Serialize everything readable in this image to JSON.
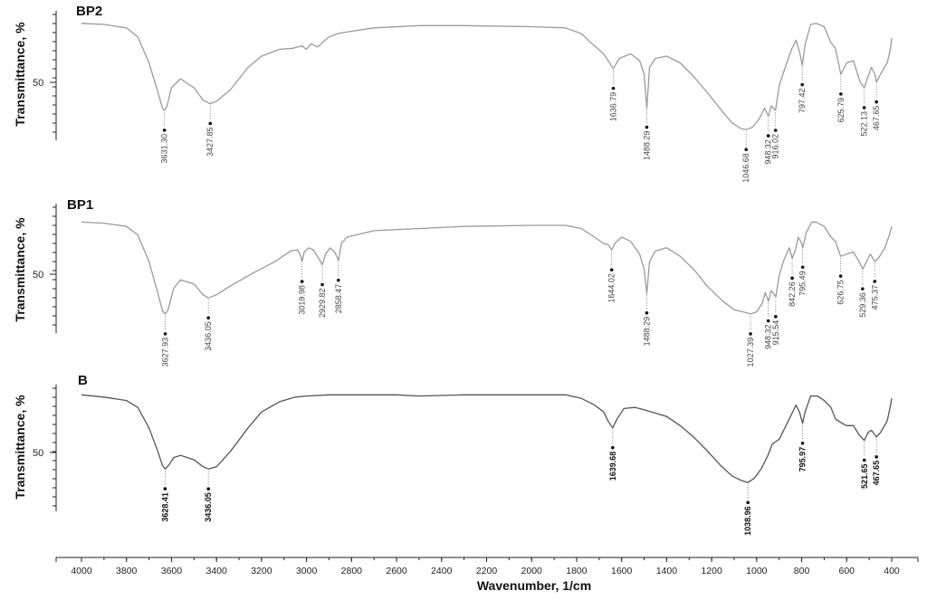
{
  "chart_data": {
    "type": "line",
    "xlabel": "Wavenumber, 1/cm",
    "xlim": [
      4000,
      400
    ],
    "xticks": [
      "4000",
      "3800",
      "3600",
      "3400",
      "3200",
      "3000",
      "2800",
      "2600",
      "2400",
      "2200",
      "2000",
      "1800",
      "1600",
      "1400",
      "1200",
      "1000",
      "800",
      "600",
      "400"
    ],
    "panels": [
      {
        "name": "BP2",
        "ylabel": "Transmittance, %",
        "ytick_label": "50",
        "color": "#9a9a9a",
        "line": [
          [
            4000,
            0.97
          ],
          [
            3900,
            0.96
          ],
          [
            3800,
            0.93
          ],
          [
            3750,
            0.85
          ],
          [
            3700,
            0.62
          ],
          [
            3660,
            0.36
          ],
          [
            3640,
            0.22
          ],
          [
            3631,
            0.2
          ],
          [
            3620,
            0.24
          ],
          [
            3600,
            0.4
          ],
          [
            3560,
            0.48
          ],
          [
            3500,
            0.4
          ],
          [
            3460,
            0.29
          ],
          [
            3428,
            0.26
          ],
          [
            3400,
            0.28
          ],
          [
            3340,
            0.38
          ],
          [
            3260,
            0.58
          ],
          [
            3200,
            0.68
          ],
          [
            3120,
            0.74
          ],
          [
            3060,
            0.75
          ],
          [
            3020,
            0.77
          ],
          [
            3000,
            0.74
          ],
          [
            2980,
            0.79
          ],
          [
            2950,
            0.76
          ],
          [
            2930,
            0.8
          ],
          [
            2900,
            0.85
          ],
          [
            2860,
            0.88
          ],
          [
            2800,
            0.9
          ],
          [
            2700,
            0.93
          ],
          [
            2500,
            0.95
          ],
          [
            2300,
            0.95
          ],
          [
            2000,
            0.94
          ],
          [
            1850,
            0.93
          ],
          [
            1780,
            0.88
          ],
          [
            1720,
            0.77
          ],
          [
            1680,
            0.7
          ],
          [
            1637,
            0.57
          ],
          [
            1610,
            0.66
          ],
          [
            1560,
            0.7
          ],
          [
            1520,
            0.64
          ],
          [
            1500,
            0.52
          ],
          [
            1488,
            0.22
          ],
          [
            1476,
            0.58
          ],
          [
            1450,
            0.66
          ],
          [
            1400,
            0.68
          ],
          [
            1340,
            0.62
          ],
          [
            1280,
            0.5
          ],
          [
            1220,
            0.36
          ],
          [
            1160,
            0.21
          ],
          [
            1110,
            0.09
          ],
          [
            1070,
            0.04
          ],
          [
            1047,
            0.03
          ],
          [
            1020,
            0.05
          ],
          [
            990,
            0.12
          ],
          [
            965,
            0.22
          ],
          [
            948,
            0.15
          ],
          [
            935,
            0.24
          ],
          [
            916,
            0.2
          ],
          [
            900,
            0.42
          ],
          [
            870,
            0.6
          ],
          [
            845,
            0.74
          ],
          [
            825,
            0.82
          ],
          [
            810,
            0.72
          ],
          [
            797,
            0.6
          ],
          [
            785,
            0.78
          ],
          [
            760,
            0.96
          ],
          [
            735,
            0.97
          ],
          [
            700,
            0.94
          ],
          [
            670,
            0.8
          ],
          [
            650,
            0.75
          ],
          [
            626,
            0.52
          ],
          [
            600,
            0.62
          ],
          [
            570,
            0.64
          ],
          [
            540,
            0.45
          ],
          [
            522,
            0.4
          ],
          [
            505,
            0.5
          ],
          [
            490,
            0.58
          ],
          [
            475,
            0.52
          ],
          [
            468,
            0.45
          ],
          [
            450,
            0.52
          ],
          [
            420,
            0.62
          ],
          [
            405,
            0.75
          ],
          [
            400,
            0.84
          ]
        ],
        "peaks": [
          3631.3,
          3427.85,
          1636.79,
          1488.29,
          1046.68,
          948.32,
          916.02,
          797.42,
          625.79,
          522.13,
          467.65
        ],
        "peak_labels": [
          "3631.30",
          "3427.85",
          "1636.79",
          "1488.29",
          "1046.68",
          "948.32",
          "916.02",
          "797.42",
          "625.79",
          "522.13",
          "467.65"
        ]
      },
      {
        "name": "BP1",
        "ylabel": "Transmittance, %",
        "ytick_label": "50",
        "color": "#9a9a9a",
        "line": [
          [
            4000,
            0.92
          ],
          [
            3900,
            0.91
          ],
          [
            3800,
            0.88
          ],
          [
            3750,
            0.8
          ],
          [
            3700,
            0.55
          ],
          [
            3660,
            0.25
          ],
          [
            3640,
            0.09
          ],
          [
            3628,
            0.06
          ],
          [
            3615,
            0.1
          ],
          [
            3590,
            0.3
          ],
          [
            3560,
            0.38
          ],
          [
            3500,
            0.34
          ],
          [
            3460,
            0.24
          ],
          [
            3436,
            0.21
          ],
          [
            3400,
            0.24
          ],
          [
            3340,
            0.32
          ],
          [
            3240,
            0.44
          ],
          [
            3140,
            0.55
          ],
          [
            3070,
            0.65
          ],
          [
            3040,
            0.66
          ],
          [
            3025,
            0.6
          ],
          [
            3020,
            0.55
          ],
          [
            3010,
            0.64
          ],
          [
            2990,
            0.68
          ],
          [
            2970,
            0.66
          ],
          [
            2940,
            0.56
          ],
          [
            2930,
            0.52
          ],
          [
            2915,
            0.62
          ],
          [
            2895,
            0.68
          ],
          [
            2875,
            0.64
          ],
          [
            2858,
            0.56
          ],
          [
            2845,
            0.72
          ],
          [
            2820,
            0.78
          ],
          [
            2700,
            0.84
          ],
          [
            2500,
            0.86
          ],
          [
            2300,
            0.88
          ],
          [
            2000,
            0.89
          ],
          [
            1850,
            0.89
          ],
          [
            1780,
            0.86
          ],
          [
            1720,
            0.78
          ],
          [
            1680,
            0.72
          ],
          [
            1660,
            0.71
          ],
          [
            1644,
            0.66
          ],
          [
            1630,
            0.72
          ],
          [
            1600,
            0.78
          ],
          [
            1560,
            0.74
          ],
          [
            1520,
            0.62
          ],
          [
            1500,
            0.48
          ],
          [
            1488,
            0.25
          ],
          [
            1476,
            0.55
          ],
          [
            1450,
            0.65
          ],
          [
            1400,
            0.68
          ],
          [
            1340,
            0.6
          ],
          [
            1280,
            0.48
          ],
          [
            1220,
            0.32
          ],
          [
            1150,
            0.18
          ],
          [
            1100,
            0.1
          ],
          [
            1060,
            0.08
          ],
          [
            1027,
            0.06
          ],
          [
            1000,
            0.08
          ],
          [
            975,
            0.16
          ],
          [
            962,
            0.26
          ],
          [
            948,
            0.18
          ],
          [
            935,
            0.28
          ],
          [
            915,
            0.22
          ],
          [
            900,
            0.42
          ],
          [
            880,
            0.56
          ],
          [
            855,
            0.68
          ],
          [
            842,
            0.58
          ],
          [
            828,
            0.66
          ],
          [
            815,
            0.78
          ],
          [
            800,
            0.72
          ],
          [
            795,
            0.68
          ],
          [
            780,
            0.82
          ],
          [
            755,
            0.92
          ],
          [
            735,
            0.92
          ],
          [
            700,
            0.88
          ],
          [
            670,
            0.78
          ],
          [
            650,
            0.74
          ],
          [
            627,
            0.6
          ],
          [
            600,
            0.62
          ],
          [
            570,
            0.64
          ],
          [
            545,
            0.55
          ],
          [
            529,
            0.48
          ],
          [
            510,
            0.56
          ],
          [
            495,
            0.62
          ],
          [
            475,
            0.55
          ],
          [
            460,
            0.58
          ],
          [
            430,
            0.68
          ],
          [
            410,
            0.8
          ],
          [
            400,
            0.88
          ]
        ],
        "peaks": [
          3627.93,
          3436.05,
          3019.98,
          2929.82,
          2858.47,
          1644.02,
          1488.29,
          1027.39,
          948.32,
          915.54,
          842.26,
          795.49,
          626.75,
          529.36,
          475.37
        ],
        "peak_labels": [
          "3627.93",
          "3436.05",
          "3019.98",
          "2929.82",
          "2858.47",
          "1644.02",
          "1488.29",
          "1027.39",
          "948.32",
          "915.54",
          "842.26",
          "795.49",
          "626.75",
          "529.36",
          "475.37"
        ]
      },
      {
        "name": "B",
        "ylabel": "Transmittance, %",
        "ytick_label": "50",
        "color": "#555555",
        "line": [
          [
            4000,
            0.95
          ],
          [
            3900,
            0.93
          ],
          [
            3800,
            0.9
          ],
          [
            3750,
            0.84
          ],
          [
            3700,
            0.66
          ],
          [
            3660,
            0.45
          ],
          [
            3640,
            0.33
          ],
          [
            3628,
            0.3
          ],
          [
            3610,
            0.34
          ],
          [
            3590,
            0.4
          ],
          [
            3560,
            0.42
          ],
          [
            3500,
            0.38
          ],
          [
            3460,
            0.32
          ],
          [
            3436,
            0.3
          ],
          [
            3400,
            0.32
          ],
          [
            3340,
            0.45
          ],
          [
            3260,
            0.66
          ],
          [
            3200,
            0.8
          ],
          [
            3120,
            0.89
          ],
          [
            3050,
            0.93
          ],
          [
            3000,
            0.94
          ],
          [
            2900,
            0.95
          ],
          [
            2800,
            0.95
          ],
          [
            2600,
            0.95
          ],
          [
            2500,
            0.94
          ],
          [
            2300,
            0.95
          ],
          [
            2000,
            0.95
          ],
          [
            1850,
            0.95
          ],
          [
            1780,
            0.92
          ],
          [
            1720,
            0.86
          ],
          [
            1680,
            0.8
          ],
          [
            1660,
            0.72
          ],
          [
            1640,
            0.66
          ],
          [
            1620,
            0.74
          ],
          [
            1590,
            0.83
          ],
          [
            1540,
            0.84
          ],
          [
            1500,
            0.82
          ],
          [
            1450,
            0.79
          ],
          [
            1400,
            0.76
          ],
          [
            1340,
            0.68
          ],
          [
            1280,
            0.58
          ],
          [
            1220,
            0.46
          ],
          [
            1160,
            0.33
          ],
          [
            1110,
            0.24
          ],
          [
            1070,
            0.2
          ],
          [
            1039,
            0.18
          ],
          [
            1010,
            0.22
          ],
          [
            980,
            0.3
          ],
          [
            950,
            0.42
          ],
          [
            930,
            0.52
          ],
          [
            900,
            0.56
          ],
          [
            870,
            0.68
          ],
          [
            845,
            0.78
          ],
          [
            825,
            0.86
          ],
          [
            810,
            0.8
          ],
          [
            796,
            0.7
          ],
          [
            785,
            0.8
          ],
          [
            760,
            0.94
          ],
          [
            730,
            0.94
          ],
          [
            700,
            0.9
          ],
          [
            670,
            0.84
          ],
          [
            650,
            0.74
          ],
          [
            620,
            0.7
          ],
          [
            600,
            0.68
          ],
          [
            570,
            0.68
          ],
          [
            545,
            0.6
          ],
          [
            522,
            0.55
          ],
          [
            505,
            0.62
          ],
          [
            490,
            0.64
          ],
          [
            475,
            0.6
          ],
          [
            468,
            0.58
          ],
          [
            450,
            0.62
          ],
          [
            420,
            0.72
          ],
          [
            405,
            0.86
          ],
          [
            400,
            0.92
          ]
        ],
        "peaks": [
          3628.41,
          3436.05,
          1639.68,
          1038.96,
          795.97,
          521.65,
          467.65
        ],
        "peak_labels": [
          "3628.41",
          "3436.05",
          "1639.68",
          "1038.96",
          "795.97",
          "521.65",
          "467.65"
        ]
      }
    ]
  }
}
